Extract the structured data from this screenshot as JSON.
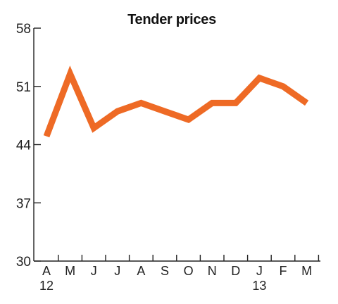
{
  "chart_data": {
    "type": "line",
    "title": "Tender prices",
    "categories": [
      "A",
      "M",
      "J",
      "J",
      "A",
      "S",
      "O",
      "N",
      "D",
      "J",
      "F",
      "M"
    ],
    "year_labels": [
      {
        "index": 0,
        "label": "12"
      },
      {
        "index": 9,
        "label": "13"
      }
    ],
    "series": [
      {
        "values": [
          45.0,
          52.5,
          46.0,
          48.0,
          49.0,
          48.0,
          47.0,
          49.0,
          49.0,
          52.0,
          51.0,
          49.0
        ],
        "color": "#EE6A25"
      }
    ],
    "yticks": [
      30,
      37,
      44,
      51,
      58
    ],
    "ylim": [
      30,
      58
    ],
    "grid": false
  }
}
